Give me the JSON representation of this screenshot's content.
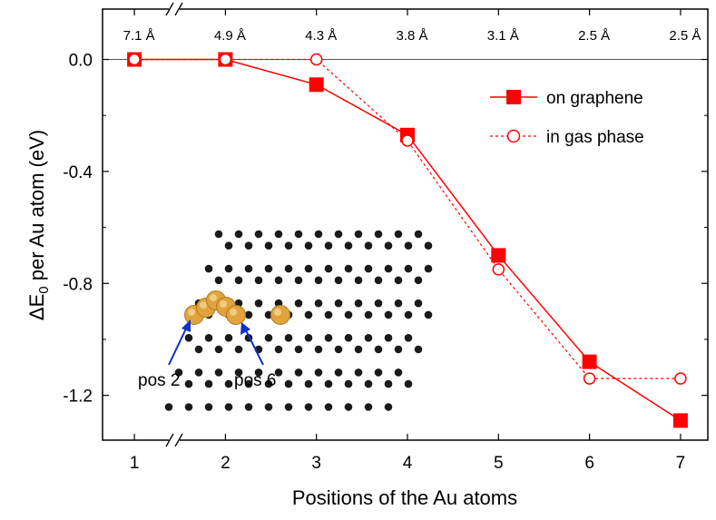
{
  "chart_data": {
    "type": "line",
    "xlabel": "Positions of the Au atoms",
    "ylabel_main": "ΔE",
    "ylabel_sub": "0",
    "ylabel_rest": " per Au atom (eV)",
    "x": [
      1,
      2,
      3,
      4,
      5,
      6,
      7
    ],
    "x_ticks": [
      "1",
      "2",
      "3",
      "4",
      "5",
      "6",
      "7"
    ],
    "y_ticks": [
      "0.0",
      "-0.4",
      "-0.8",
      "-1.2"
    ],
    "y_tick_values": [
      0.0,
      -0.4,
      -0.8,
      -1.2
    ],
    "xlim": [
      0.65,
      7.3
    ],
    "ylim": [
      -1.36,
      0.18
    ],
    "top_axis_labels": [
      "7.1 Å",
      "4.9 Å",
      "4.3 Å",
      "3.8 Å",
      "3.1 Å",
      "2.5 Å",
      "2.5 Å"
    ],
    "series": [
      {
        "name": "on graphene",
        "values": [
          0.0,
          0.0,
          -0.09,
          -0.27,
          -0.7,
          -1.08,
          -1.29
        ],
        "color": "#ff0000",
        "marker": "filled-square",
        "line": "solid"
      },
      {
        "name": "in gas phase",
        "values": [
          0.0,
          0.0,
          0.0,
          -0.29,
          -0.75,
          -1.14,
          -1.14
        ],
        "color": "#ff0000",
        "marker": "open-circle",
        "line": "dashed"
      }
    ],
    "legend_position": "top-right",
    "annotations": [
      "pos 2",
      "pos 6"
    ],
    "inset": "graphene-lattice-with-au-atoms"
  }
}
